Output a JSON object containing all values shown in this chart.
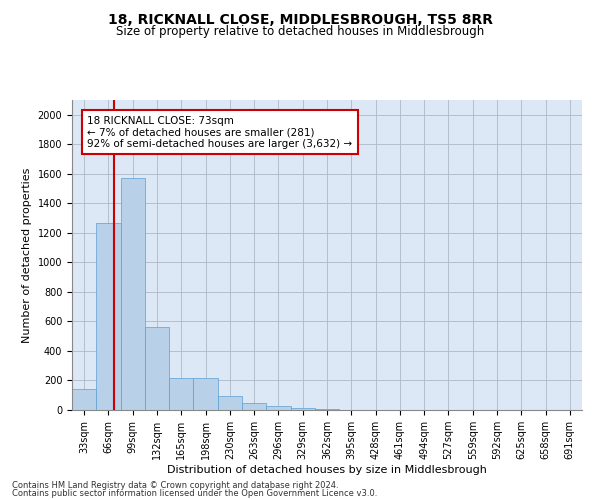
{
  "title": "18, RICKNALL CLOSE, MIDDLESBROUGH, TS5 8RR",
  "subtitle": "Size of property relative to detached houses in Middlesbrough",
  "xlabel": "Distribution of detached houses by size in Middlesbrough",
  "ylabel": "Number of detached properties",
  "footnote1": "Contains HM Land Registry data © Crown copyright and database right 2024.",
  "footnote2": "Contains public sector information licensed under the Open Government Licence v3.0.",
  "annotation_title": "18 RICKNALL CLOSE: 73sqm",
  "annotation_line1": "← 7% of detached houses are smaller (281)",
  "annotation_line2": "92% of semi-detached houses are larger (3,632) →",
  "bar_color": "#b8d0e8",
  "bar_edge_color": "#5a9fd4",
  "highlight_color": "#cc0000",
  "categories": [
    "33sqm",
    "66sqm",
    "99sqm",
    "132sqm",
    "165sqm",
    "198sqm",
    "230sqm",
    "263sqm",
    "296sqm",
    "329sqm",
    "362sqm",
    "395sqm",
    "428sqm",
    "461sqm",
    "494sqm",
    "527sqm",
    "559sqm",
    "592sqm",
    "625sqm",
    "658sqm",
    "691sqm"
  ],
  "values": [
    140,
    1265,
    1575,
    565,
    220,
    220,
    95,
    50,
    27,
    15,
    10,
    0,
    0,
    0,
    0,
    0,
    0,
    0,
    0,
    0,
    0
  ],
  "ylim": [
    0,
    2100
  ],
  "yticks": [
    0,
    200,
    400,
    600,
    800,
    1000,
    1200,
    1400,
    1600,
    1800,
    2000
  ],
  "bg_color": "#ffffff",
  "plot_bg_color": "#dce8f5",
  "grid_color": "#b0b8c8",
  "title_fontsize": 10,
  "subtitle_fontsize": 8.5,
  "axis_label_fontsize": 8,
  "tick_fontsize": 7,
  "annotation_fontsize": 7.5,
  "footnote_fontsize": 6
}
